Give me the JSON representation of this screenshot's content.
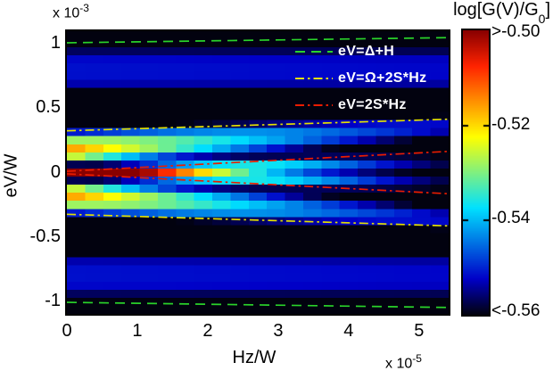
{
  "figure": {
    "y_multiplier": {
      "base": "x 10",
      "exp": "-3"
    },
    "x_multiplier": {
      "base": "x 10",
      "exp": "-5"
    },
    "xlabel": "Hz/W",
    "ylabel": "eV/W",
    "colorbar_title": {
      "main": "log[G(V)/G",
      "sub": "0",
      "close": "]"
    }
  },
  "chart_data": {
    "type": "heatmap",
    "xlabel": "Hz/W",
    "ylabel": "eV/W",
    "x_unit_scale": "1e-5",
    "y_unit_scale": "1e-3",
    "x_range": [
      0,
      5.42
    ],
    "y_range": [
      -1.1,
      1.1
    ],
    "x_ticks": [
      {
        "label": "0",
        "value": 0
      },
      {
        "label": "1",
        "value": 1
      },
      {
        "label": "2",
        "value": 2
      },
      {
        "label": "3",
        "value": 3
      },
      {
        "label": "4",
        "value": 4
      },
      {
        "label": "5",
        "value": 5
      }
    ],
    "y_ticks": [
      {
        "label": "1",
        "value": 1
      },
      {
        "label": "0.5",
        "value": 0.5
      },
      {
        "label": "0",
        "value": 0
      },
      {
        "label": "-0.5",
        "value": -0.5
      },
      {
        "label": "-1",
        "value": -1
      }
    ],
    "grid_cells": {
      "nx": 21,
      "ny": 35
    },
    "colorbar": {
      "vmin": -0.56,
      "vmax": -0.5,
      "labels": [
        {
          "text": ">-0.50",
          "value": -0.5
        },
        {
          "text": "-0.52",
          "value": -0.52
        },
        {
          "text": "-0.54",
          "value": -0.54
        },
        {
          "text": "<-0.56",
          "value": -0.56
        }
      ],
      "tick_values": [
        -0.52,
        -0.54
      ],
      "colormap_stops": [
        [
          0.0,
          2,
          2,
          15
        ],
        [
          0.125,
          0,
          0,
          200
        ],
        [
          0.375,
          0,
          225,
          255
        ],
        [
          0.625,
          255,
          255,
          0
        ],
        [
          0.875,
          255,
          35,
          0
        ],
        [
          1.0,
          137,
          0,
          0
        ]
      ]
    },
    "overlay_lines": [
      {
        "label": "eV=Δ+H",
        "color": "#2ad32a",
        "style": "dashed",
        "u_start": 1.01,
        "u_end": 1.05,
        "mirrored": true
      },
      {
        "label": "eV=Ω+2S*Hz",
        "color": "#e3e000",
        "style": "dashdot",
        "u_start": 0.325,
        "u_end": 0.415,
        "mirrored": true
      },
      {
        "label": "eV=2S*Hz",
        "color": "#ea1c00",
        "style": "dashdot",
        "u_start": 0.01,
        "u_end": 0.165,
        "mirrored": true
      }
    ],
    "legend_rows_y": [
      23,
      53,
      83
    ],
    "surface_model": {
      "base": -0.565,
      "clip_max": -0.492,
      "outer_band": {
        "amplitude": 0.0135,
        "center": 0.8,
        "width": 0.17,
        "power": 4,
        "h_fade": 0.01
      },
      "side_band": {
        "amplitude": 0.05,
        "h_decay": 4.0,
        "center0": 0.17,
        "center_slope": 0.035,
        "width0": 0.13,
        "width_slope": -0.008,
        "power": 2.5
      },
      "central_peak": {
        "amplitude": 0.078,
        "h_gauss": 3.5,
        "center_slope": 0.014,
        "width0": 0.04,
        "width_slope": 0.008,
        "power": 2
      },
      "inner_dip": {
        "amplitude": 0.025,
        "center": 0.07,
        "width": 0.05,
        "power": 4,
        "h_gauss": 2.5
      }
    }
  }
}
